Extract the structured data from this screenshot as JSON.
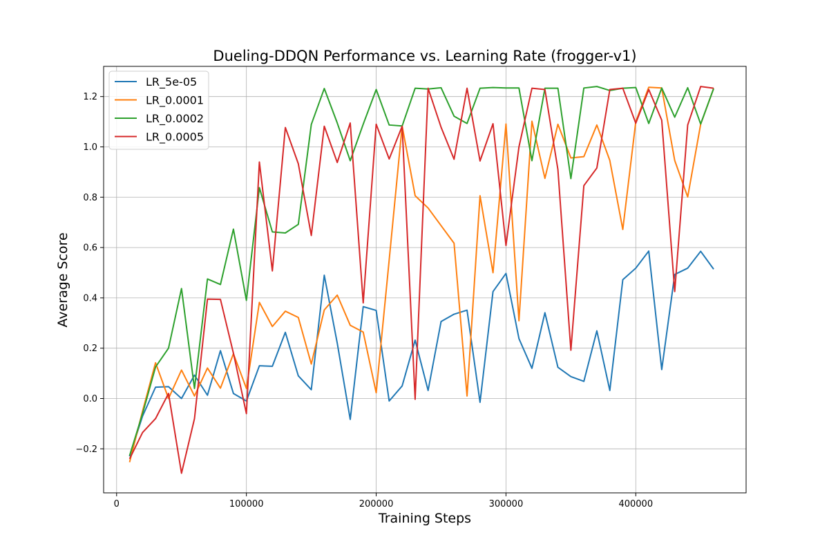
{
  "chart_data": {
    "type": "line",
    "title": "Dueling-DDQN Performance vs. Learning Rate (frogger-v1)",
    "xlabel": "Training Steps",
    "ylabel": "Average Score",
    "xlim": [
      -10000,
      485000
    ],
    "ylim": [
      -0.375,
      1.32
    ],
    "xticks": [
      0,
      100000,
      200000,
      300000,
      400000
    ],
    "yticks": [
      -0.2,
      0.0,
      0.2,
      0.4,
      0.6,
      0.8,
      1.0,
      1.2
    ],
    "grid": true,
    "legend_position": "top-left",
    "x": [
      10000,
      20000,
      30000,
      40000,
      50000,
      60000,
      70000,
      80000,
      90000,
      100000,
      110000,
      120000,
      130000,
      140000,
      150000,
      160000,
      170000,
      180000,
      190000,
      200000,
      210000,
      220000,
      230000,
      240000,
      250000,
      260000,
      270000,
      280000,
      290000,
      300000,
      310000,
      320000,
      330000,
      340000,
      350000,
      360000,
      370000,
      380000,
      390000,
      400000,
      410000,
      420000,
      430000,
      440000,
      450000,
      460000
    ],
    "series": [
      {
        "name": "LR_5e-05",
        "color": "#1f77b4",
        "values": [
          -0.23,
          -0.07,
          0.045,
          0.047,
          0.0,
          0.093,
          0.013,
          0.19,
          0.02,
          -0.01,
          0.13,
          0.128,
          0.263,
          0.09,
          0.035,
          0.49,
          0.22,
          -0.083,
          0.365,
          0.35,
          -0.01,
          0.05,
          0.232,
          0.032,
          0.306,
          0.335,
          0.351,
          -0.015,
          0.425,
          0.497,
          0.238,
          0.12,
          0.341,
          0.124,
          0.087,
          0.068,
          0.269,
          0.032,
          0.472,
          0.518,
          0.586,
          0.115,
          0.493,
          0.518,
          0.585,
          0.514
        ]
      },
      {
        "name": "LR_0.0001",
        "color": "#ff7f0e",
        "values": [
          -0.253,
          -0.05,
          0.142,
          0.0,
          0.113,
          0.01,
          0.121,
          0.041,
          0.178,
          0.04,
          0.382,
          0.286,
          0.347,
          0.322,
          0.137,
          0.352,
          0.411,
          0.291,
          0.264,
          0.023,
          0.55,
          1.083,
          0.806,
          0.757,
          0.687,
          0.617,
          0.01,
          0.806,
          0.5,
          1.091,
          0.309,
          1.102,
          0.875,
          1.09,
          0.956,
          0.961,
          1.087,
          0.946,
          0.672,
          1.1,
          1.237,
          1.234,
          0.946,
          0.801,
          1.09,
          1.232
        ]
      },
      {
        "name": "LR_0.0002",
        "color": "#2ca02c",
        "values": [
          -0.227,
          -0.06,
          0.125,
          0.2,
          0.437,
          0.04,
          0.475,
          0.453,
          0.673,
          0.39,
          0.838,
          0.662,
          0.658,
          0.692,
          1.089,
          1.232,
          1.095,
          0.945,
          1.09,
          1.228,
          1.087,
          1.083,
          1.233,
          1.23,
          1.235,
          1.122,
          1.093,
          1.233,
          1.236,
          1.234,
          1.234,
          0.945,
          1.233,
          1.233,
          0.874,
          1.234,
          1.24,
          1.224,
          1.233,
          1.236,
          1.093,
          1.234,
          1.118,
          1.235,
          1.091,
          1.232
        ]
      },
      {
        "name": "LR_0.0005",
        "color": "#d62728",
        "values": [
          -0.24,
          -0.135,
          -0.08,
          0.02,
          -0.297,
          -0.08,
          0.395,
          0.394,
          0.18,
          -0.06,
          0.94,
          0.507,
          1.077,
          0.933,
          0.648,
          1.082,
          0.938,
          1.095,
          0.38,
          1.09,
          0.952,
          1.082,
          -0.003,
          1.233,
          1.078,
          0.951,
          1.233,
          0.944,
          1.092,
          0.608,
          1.0,
          1.233,
          1.228,
          0.91,
          0.192,
          0.846,
          0.916,
          1.228,
          1.233,
          1.094,
          1.228,
          1.106,
          0.425,
          1.087,
          1.24,
          1.233
        ]
      }
    ]
  }
}
